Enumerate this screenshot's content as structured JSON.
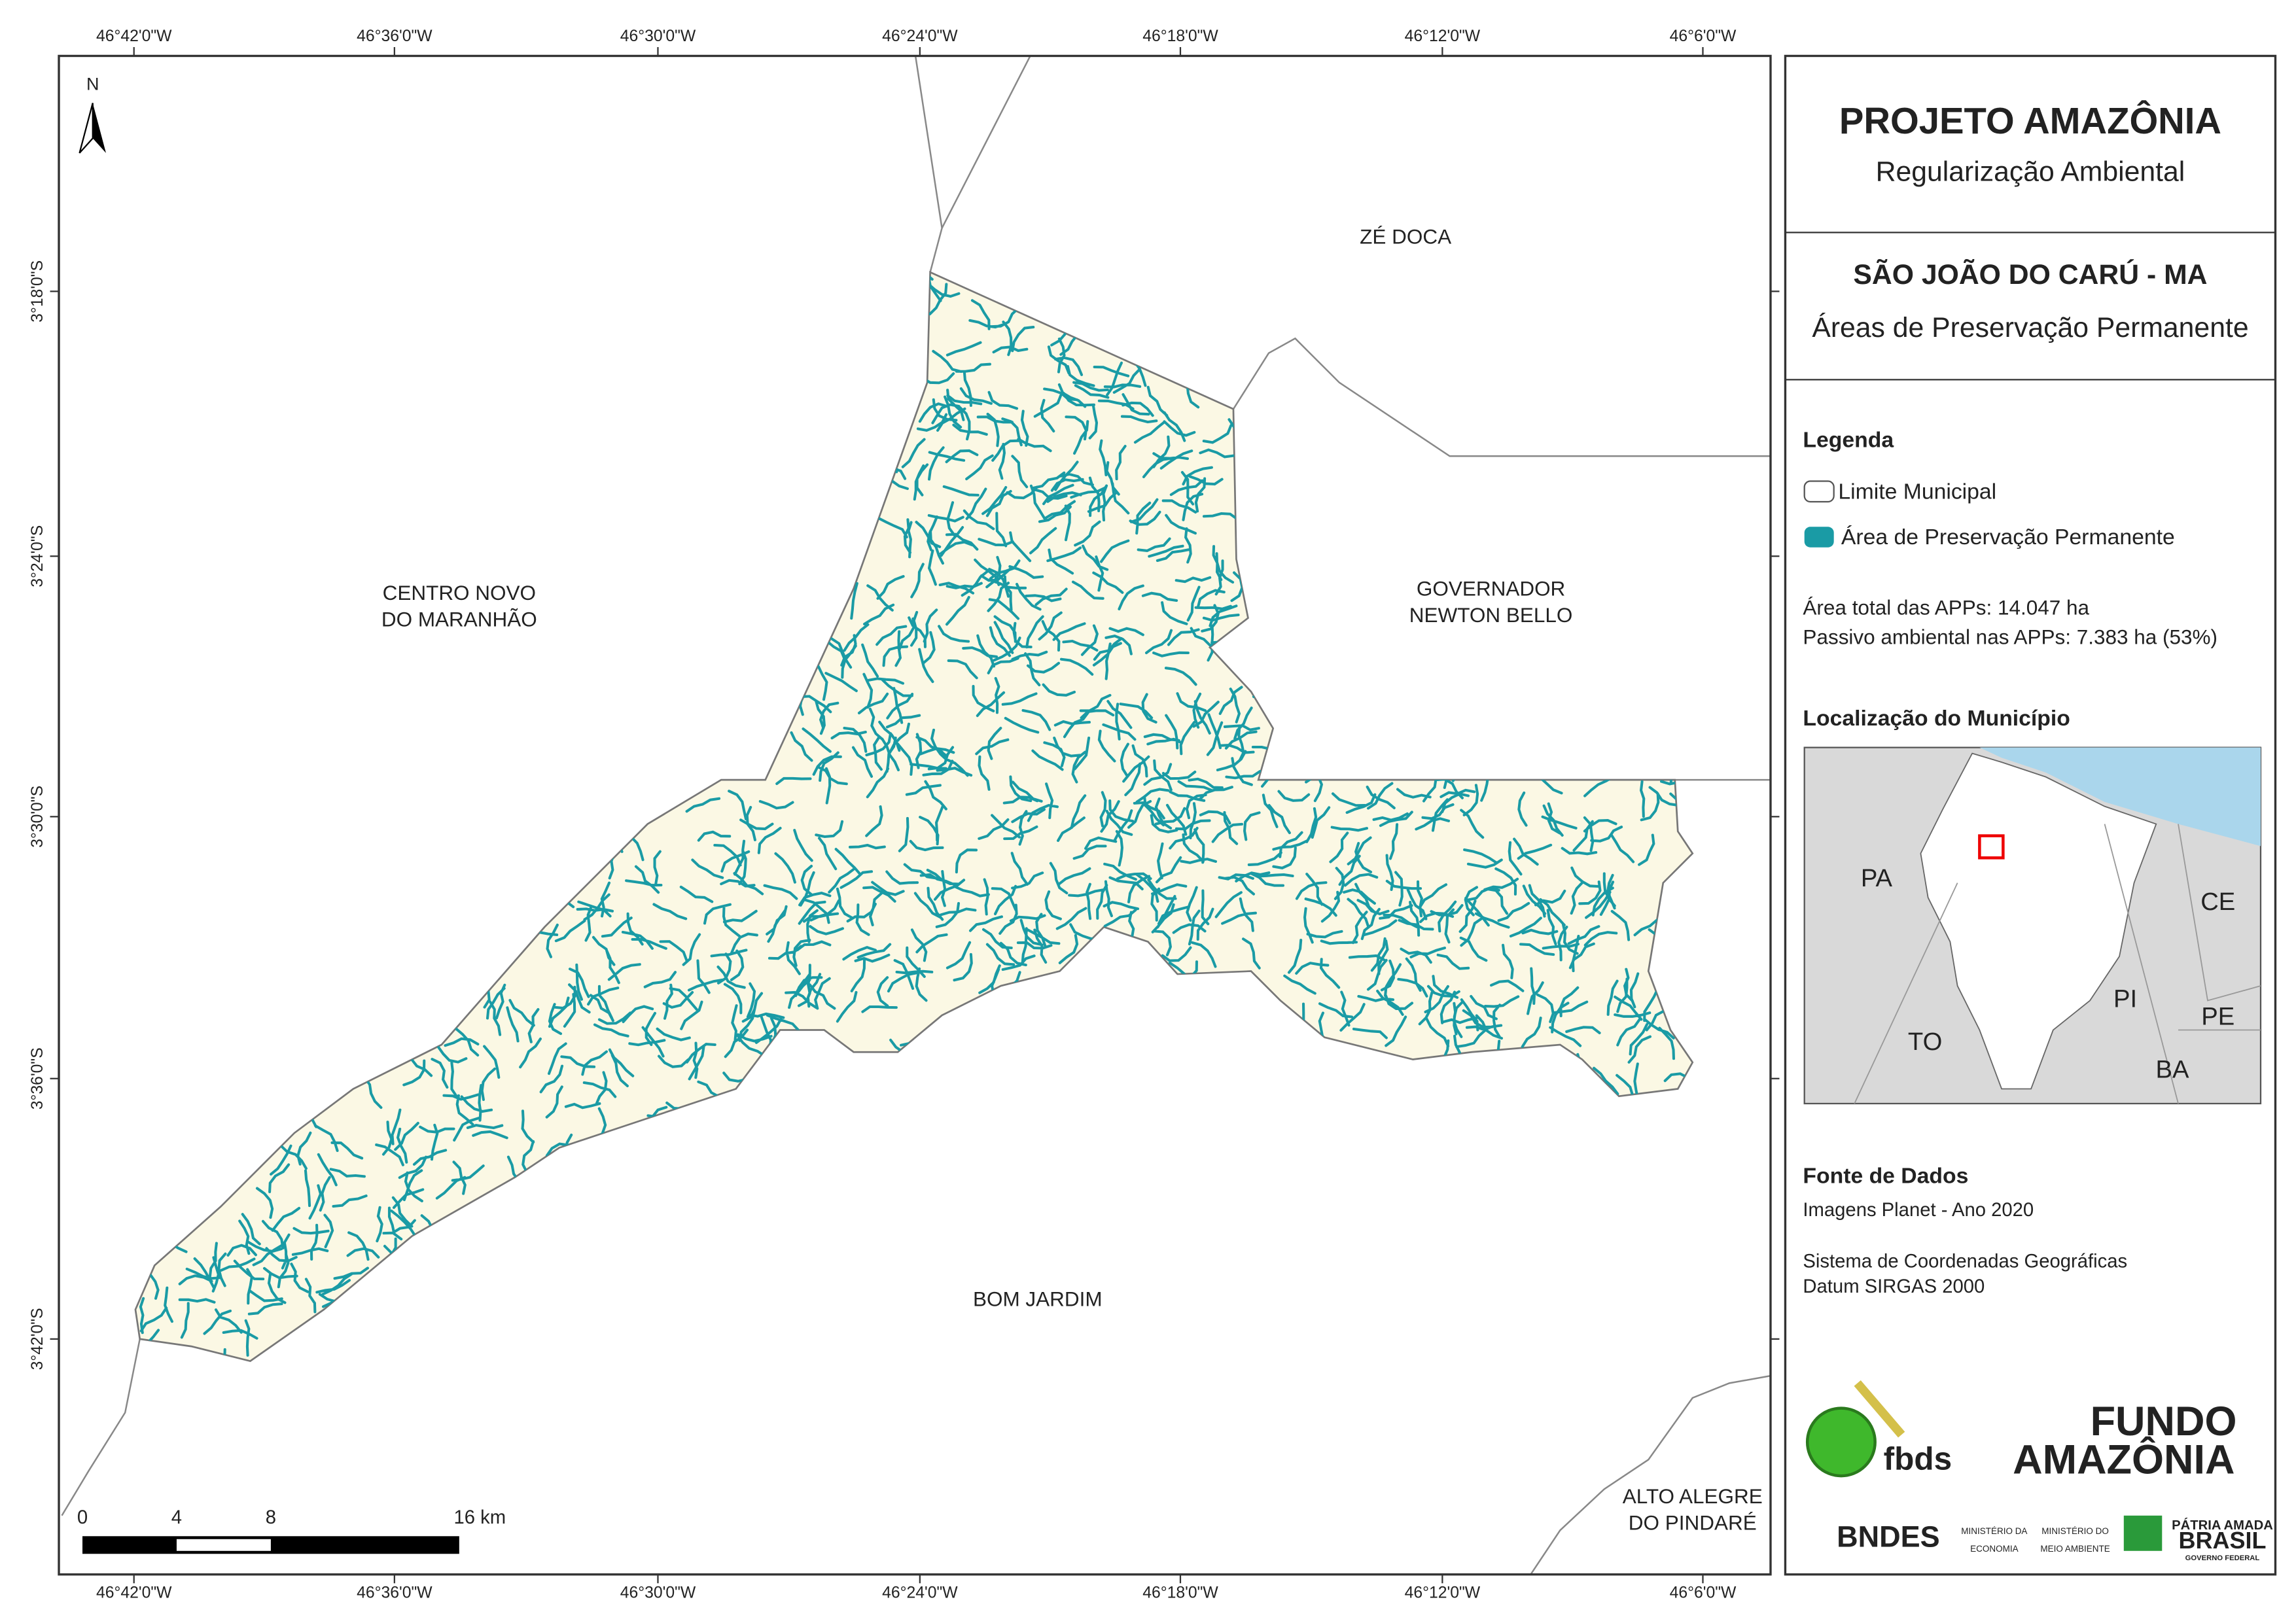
{
  "header": {
    "title": "PROJETO AMAZÔNIA",
    "subtitle": "Regularização Ambiental"
  },
  "map_title": {
    "municipality": "SÃO JOÃO DO CARÚ - MA",
    "theme": "Áreas de Preservação Permanente"
  },
  "legend": {
    "title": "Legenda",
    "items": [
      "Limite Municipal",
      "Área de Preservação Permanente"
    ]
  },
  "stats": [
    "Área total das APPs: 14.047 ha",
    "Passivo ambiental nas APPs: 7.383 ha (53%)"
  ],
  "locator": {
    "title": "Localização do Município",
    "labels": [
      "PA",
      "CE",
      "PI",
      "PE",
      "TO",
      "BA"
    ]
  },
  "sources": {
    "title": "Fonte de Dados",
    "lines": [
      "Imagens Planet - Ano 2020",
      "Sistema de Coordenadas Geográficas",
      "Datum SIRGAS 2000"
    ]
  },
  "map": {
    "north": "N",
    "x_labels": [
      "46°42'0\"W",
      "46°36'0\"W",
      "46°30'0\"W",
      "46°24'0\"W",
      "46°18'0\"W",
      "46°12'0\"W",
      "46°6'0\"W"
    ],
    "y_labels": [
      "3°18'0\"S",
      "3°24'0\"S",
      "3°30'0\"S",
      "3°36'0\"S",
      "3°42'0\"S"
    ],
    "places": [
      {
        "lines": [
          "ZÉ DOCA"
        ]
      },
      {
        "lines": [
          "CENTRO NOVO",
          "DO MARANHÃO"
        ]
      },
      {
        "lines": [
          "GOVERNADOR",
          "NEWTON BELLO"
        ]
      },
      {
        "lines": [
          "BOM JARDIM"
        ]
      },
      {
        "lines": [
          "ALTO ALEGRE",
          "DO PINDARÉ"
        ]
      }
    ],
    "scale": [
      "0",
      "4",
      "8",
      "16 km"
    ]
  },
  "logos": {
    "fbds": "fbds",
    "fundo": [
      "FUNDO",
      "AMAZÔNIA"
    ],
    "bndes": "BNDES",
    "ministries": [
      "MINISTÉRIO DA",
      "ECONOMIA",
      "MINISTÉRIO DO",
      "MEIO AMBIENTE"
    ],
    "gov": [
      "PÁTRIA AMADA",
      "BRASIL",
      "GOVERNO FEDERAL"
    ]
  }
}
